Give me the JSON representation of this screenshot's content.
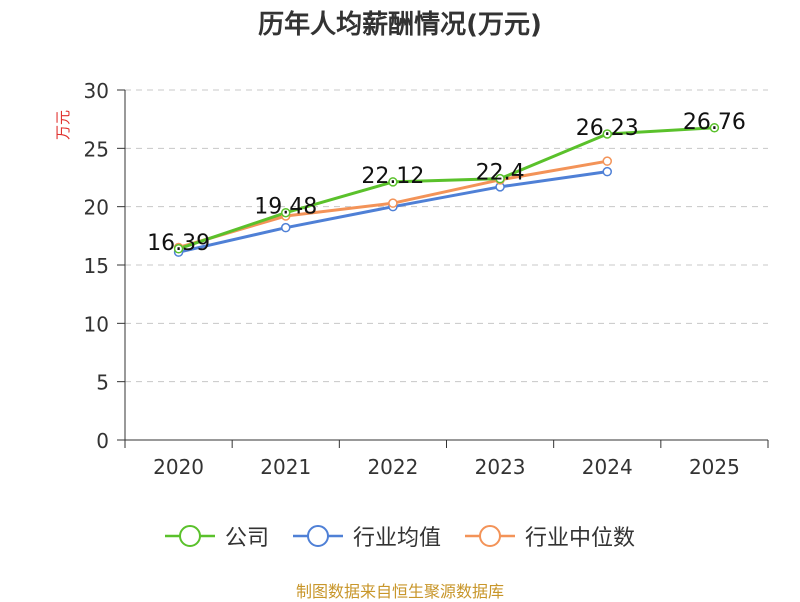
{
  "title": "历年人均薪酬情况(万元)",
  "source": "制图数据来自恒生聚源数据库",
  "chart_data": {
    "type": "line",
    "title": "历年人均薪酬情况(万元)",
    "ylabel": "万元",
    "xlabel": "",
    "categories": [
      "2020",
      "2021",
      "2022",
      "2023",
      "2024",
      "2025"
    ],
    "ylim": [
      0,
      30
    ],
    "yticks": [
      0,
      5,
      10,
      15,
      20,
      25,
      30
    ],
    "grid": "horizontal-dashed",
    "legend_position": "bottom",
    "series": [
      {
        "name": "公司",
        "color": "#5ac12b",
        "values": [
          16.39,
          19.48,
          22.12,
          22.4,
          26.23,
          26.76
        ],
        "labels": [
          "16.39",
          "19.48",
          "22.12",
          "22.4",
          "26.23",
          "26.76"
        ]
      },
      {
        "name": "行业均值",
        "color": "#4f80d6",
        "values": [
          16.1,
          18.2,
          20.0,
          21.7,
          23.0,
          null
        ]
      },
      {
        "name": "行业中位数",
        "color": "#f39358",
        "values": [
          16.5,
          19.2,
          20.3,
          22.3,
          23.9,
          null
        ]
      }
    ]
  }
}
